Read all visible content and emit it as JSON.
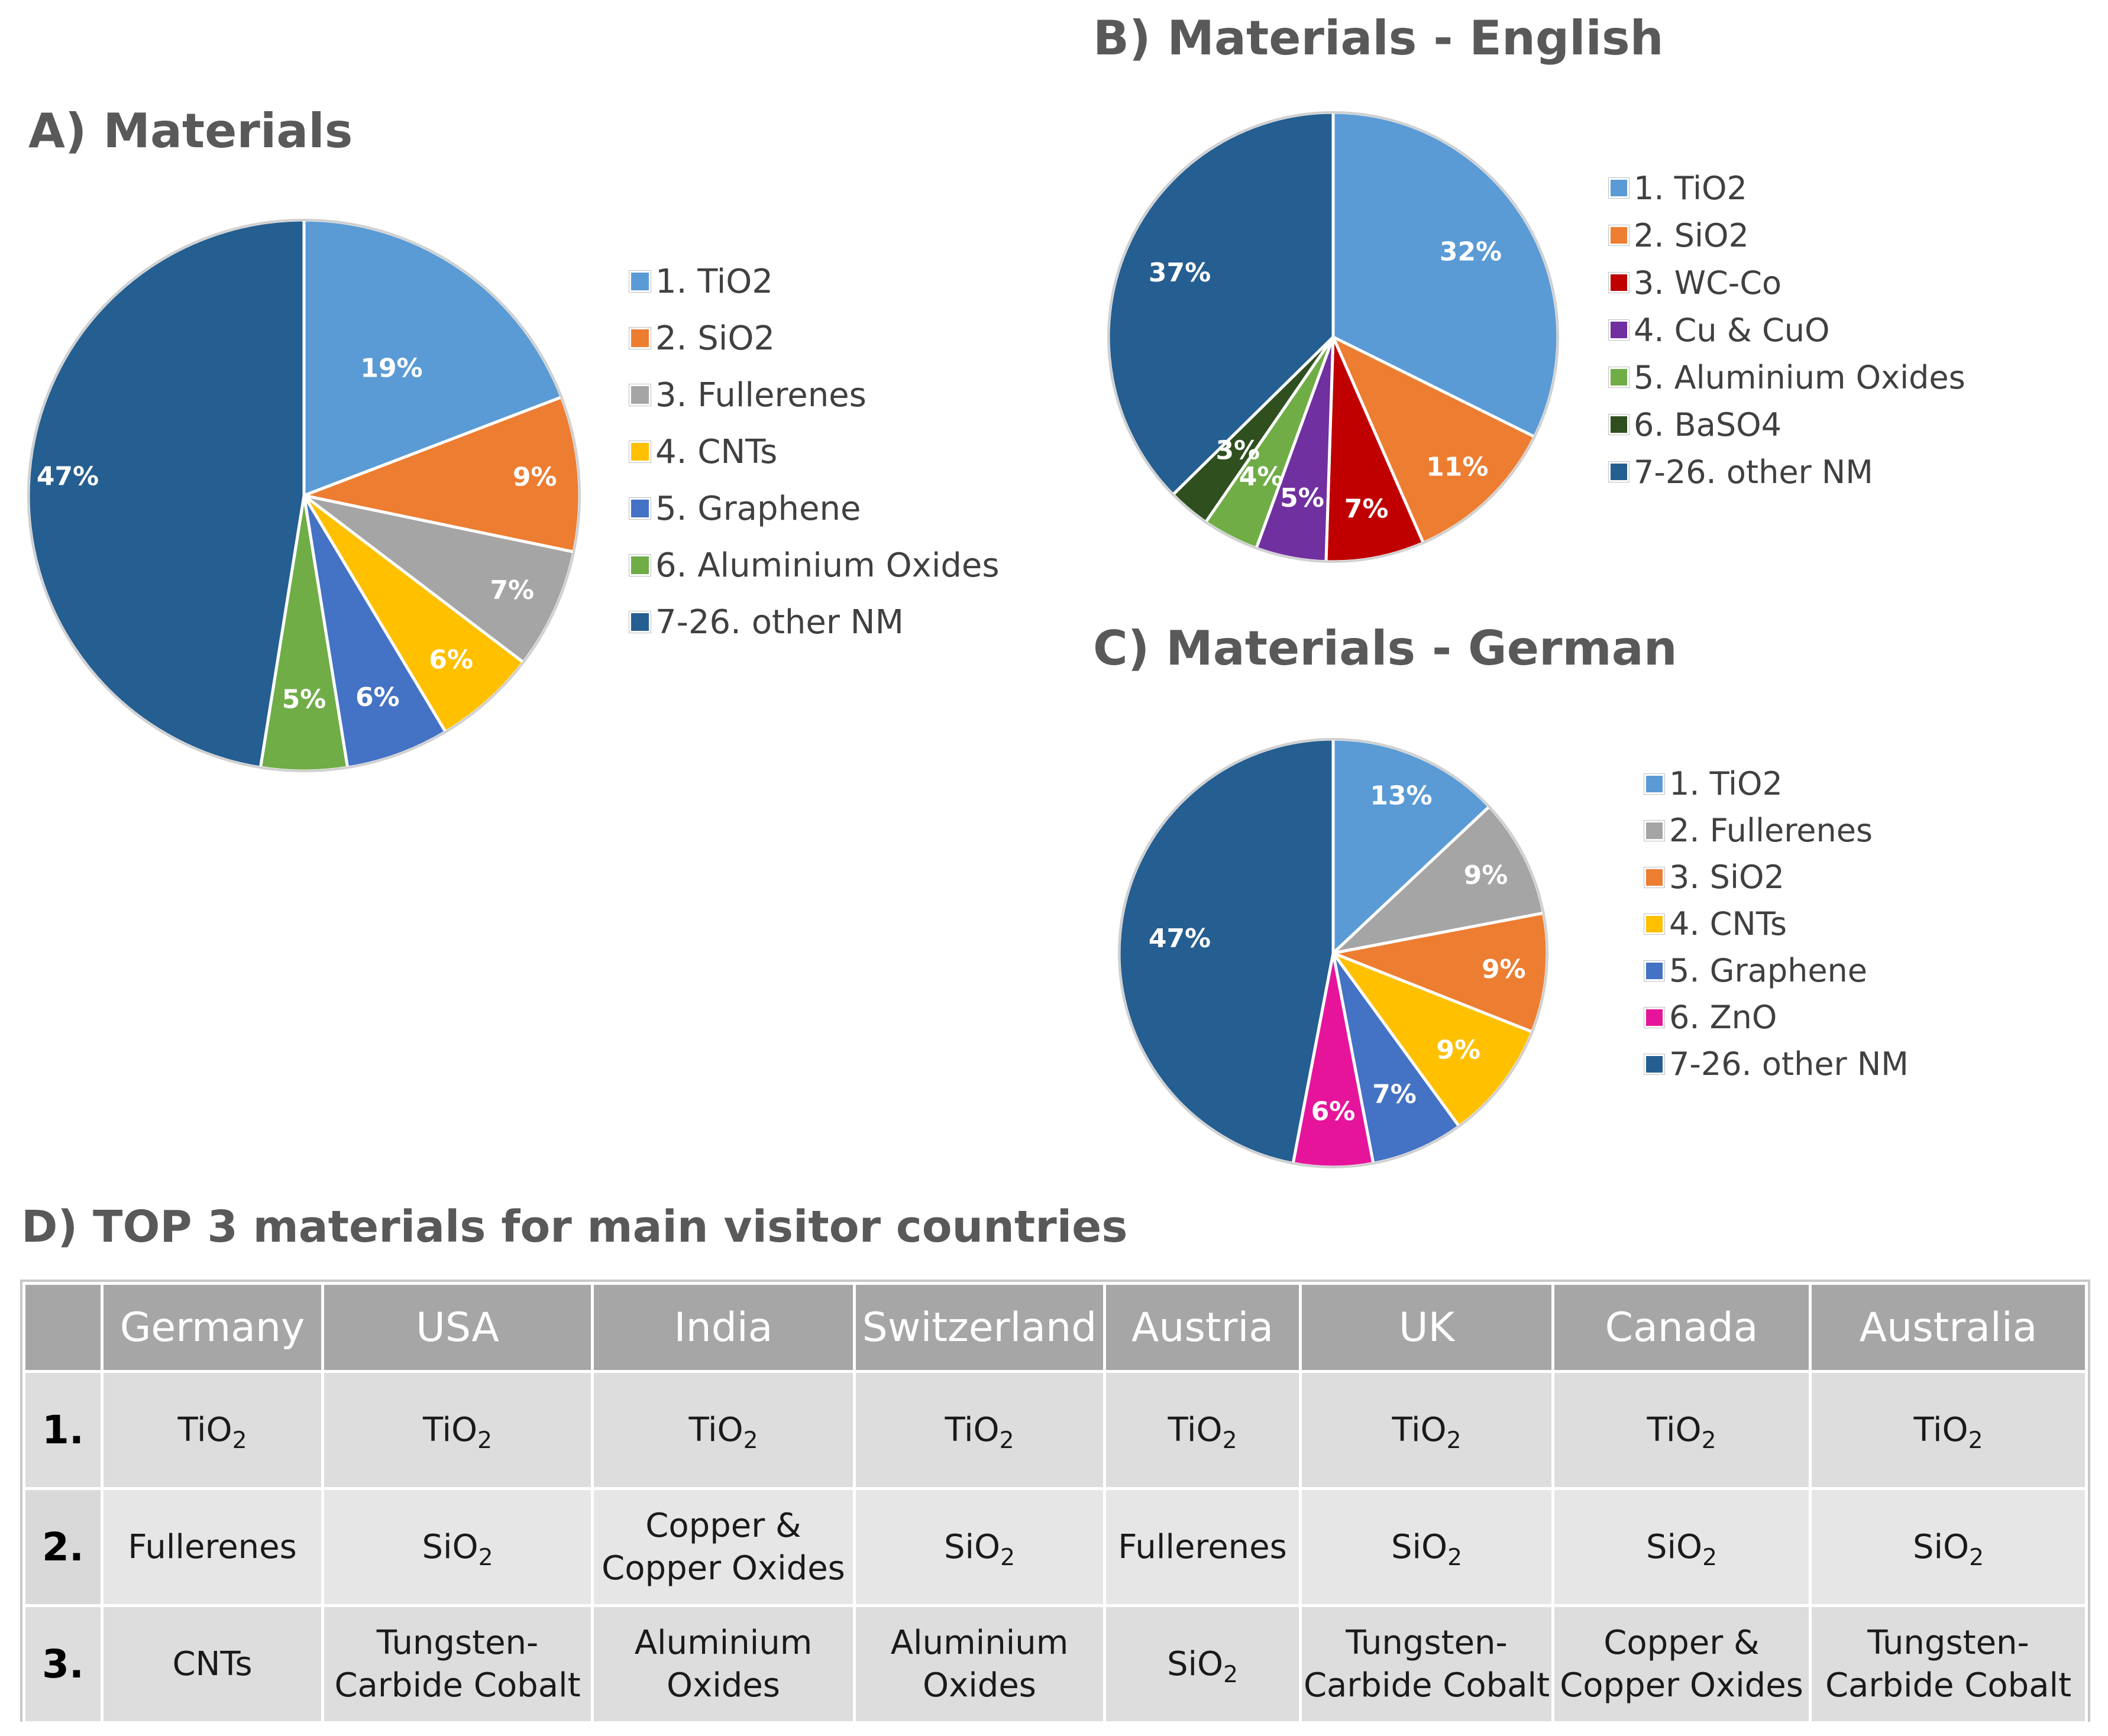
{
  "chart_data": [
    {
      "type": "pie",
      "title": "A) Materials",
      "legend_position": "right",
      "categories": [
        "1. TiO2",
        "2. SiO2",
        "3. Fullerenes",
        "4. CNTs",
        "5. Graphene",
        "6. Aluminium Oxides",
        "7-26. other NM"
      ],
      "values": [
        19,
        9,
        7,
        6,
        6,
        5,
        47
      ],
      "labels": [
        "19%",
        "9%",
        "7%",
        "6%",
        "6%",
        "5%",
        "47%"
      ],
      "colors": [
        "#5b9bd5",
        "#ed7d31",
        "#a5a5a5",
        "#ffc000",
        "#4472c4",
        "#70ad47",
        "#255e91"
      ]
    },
    {
      "type": "pie",
      "title": "B) Materials - English",
      "legend_position": "right",
      "categories": [
        "1. TiO2",
        "2. SiO2",
        "3. WC-Co",
        "4. Cu & CuO",
        "5. Aluminium Oxides",
        "6. BaSO4",
        "7-26. other NM"
      ],
      "values": [
        32,
        11,
        7,
        5,
        4,
        3,
        37
      ],
      "labels": [
        "32%",
        "11%",
        "7%",
        "5%",
        "4%",
        "3%",
        "37%"
      ],
      "colors": [
        "#5b9bd5",
        "#ed7d31",
        "#c00000",
        "#7030a0",
        "#70ad47",
        "#2f4f1f",
        "#255e91"
      ]
    },
    {
      "type": "pie",
      "title": "C) Materials - German",
      "legend_position": "right",
      "categories": [
        "1. TiO2",
        "2. Fullerenes",
        "3. SiO2",
        "4. CNTs",
        "5. Graphene",
        "6. ZnO",
        "7-26. other NM"
      ],
      "values": [
        13,
        9,
        9,
        9,
        7,
        6,
        47
      ],
      "labels": [
        "13%",
        "9%",
        "9%",
        "9%",
        "7%",
        "6%",
        "47%"
      ],
      "colors": [
        "#5b9bd5",
        "#a5a5a5",
        "#ed7d31",
        "#ffc000",
        "#4472c4",
        "#e6149b",
        "#255e91"
      ]
    },
    {
      "type": "table",
      "title": "D) TOP 3 materials for main visitor countries",
      "columns": [
        "Germany",
        "USA",
        "India",
        "Switzerland",
        "Austria",
        "UK",
        "Canada",
        "Australia"
      ],
      "rows": [
        {
          "rank": "1.",
          "cells": [
            {
              "main": "TiO",
              "sub": "2"
            },
            {
              "main": "TiO",
              "sub": "2"
            },
            {
              "main": "TiO",
              "sub": "2"
            },
            {
              "main": "TiO",
              "sub": "2"
            },
            {
              "main": "TiO",
              "sub": "2"
            },
            {
              "main": "TiO",
              "sub": "2"
            },
            {
              "main": "TiO",
              "sub": "2"
            },
            {
              "main": "TiO",
              "sub": "2"
            }
          ]
        },
        {
          "rank": "2.",
          "cells": [
            {
              "text": "Fullerenes"
            },
            {
              "main": "SiO",
              "sub": "2"
            },
            {
              "line1": "Copper &",
              "line2": "Copper Oxides"
            },
            {
              "main": "SiO",
              "sub": "2"
            },
            {
              "text": "Fullerenes"
            },
            {
              "main": "SiO",
              "sub": "2"
            },
            {
              "main": "SiO",
              "sub": "2"
            },
            {
              "main": "SiO",
              "sub": "2"
            }
          ]
        },
        {
          "rank": "3.",
          "cells": [
            {
              "text": "CNTs"
            },
            {
              "line1": "Tungsten-",
              "line2": "Carbide Cobalt"
            },
            {
              "line1": "Aluminium",
              "line2": "Oxides"
            },
            {
              "line1": "Aluminium",
              "line2": "Oxides"
            },
            {
              "main": "SiO",
              "sub": "2"
            },
            {
              "line1": "Tungsten-",
              "line2": "Carbide Cobalt"
            },
            {
              "line1": "Copper &",
              "line2": "Copper Oxides"
            },
            {
              "line1": "Tungsten-",
              "line2": "Carbide Cobalt"
            }
          ]
        }
      ]
    }
  ]
}
